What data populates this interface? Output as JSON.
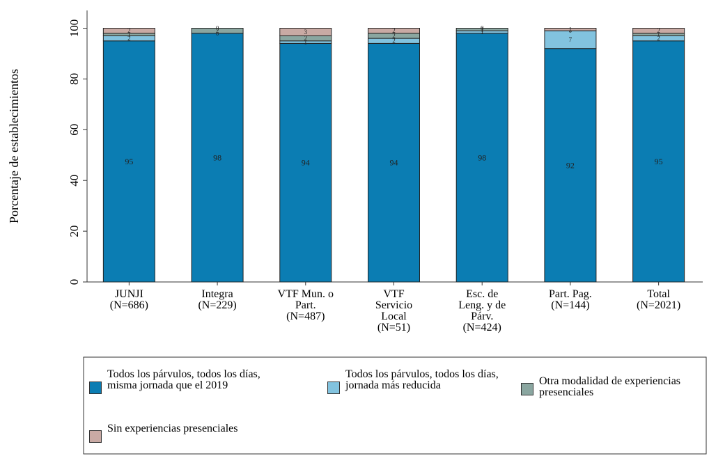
{
  "chart_data": {
    "type": "stacked_bar",
    "ylabel": "Porcentaje de establecimientos",
    "categories": [
      [
        "JUNJI",
        "(N=686)"
      ],
      [
        "Integra",
        "(N=229)"
      ],
      [
        "VTF Mun. o",
        "Part.",
        "(N=487)"
      ],
      [
        "VTF",
        "Servicio",
        "Local",
        "(N=51)"
      ],
      [
        "Esc. de",
        "Leng. y de",
        "Párv.",
        "(N=424)"
      ],
      [
        "Part. Pag.",
        "(N=144)"
      ],
      [
        "Total",
        "(N=2021)"
      ]
    ],
    "series": [
      {
        "name": "Todos los párvulos, todos los días, misma jornada que el 2019",
        "color": "#0b7db3",
        "values": [
          95,
          98,
          94,
          94,
          98,
          92,
          95
        ]
      },
      {
        "name": "Todos los párvulos, todos los días, jornada más reducida",
        "color": "#82c3df",
        "values": [
          2,
          0,
          1,
          2,
          1,
          7,
          2
        ]
      },
      {
        "name": "Otra modalidad de experiencias presenciales",
        "color": "#8aa6a0",
        "values": [
          1,
          2,
          2,
          2,
          1,
          0,
          1
        ]
      },
      {
        "name": "Sin experiencias presenciales",
        "color": "#c9aaa4",
        "values": [
          2,
          0,
          3,
          2,
          0,
          1,
          2
        ]
      }
    ],
    "ylim": [
      0,
      107
    ],
    "yticks": [
      0,
      20,
      40,
      60,
      80,
      100
    ]
  }
}
